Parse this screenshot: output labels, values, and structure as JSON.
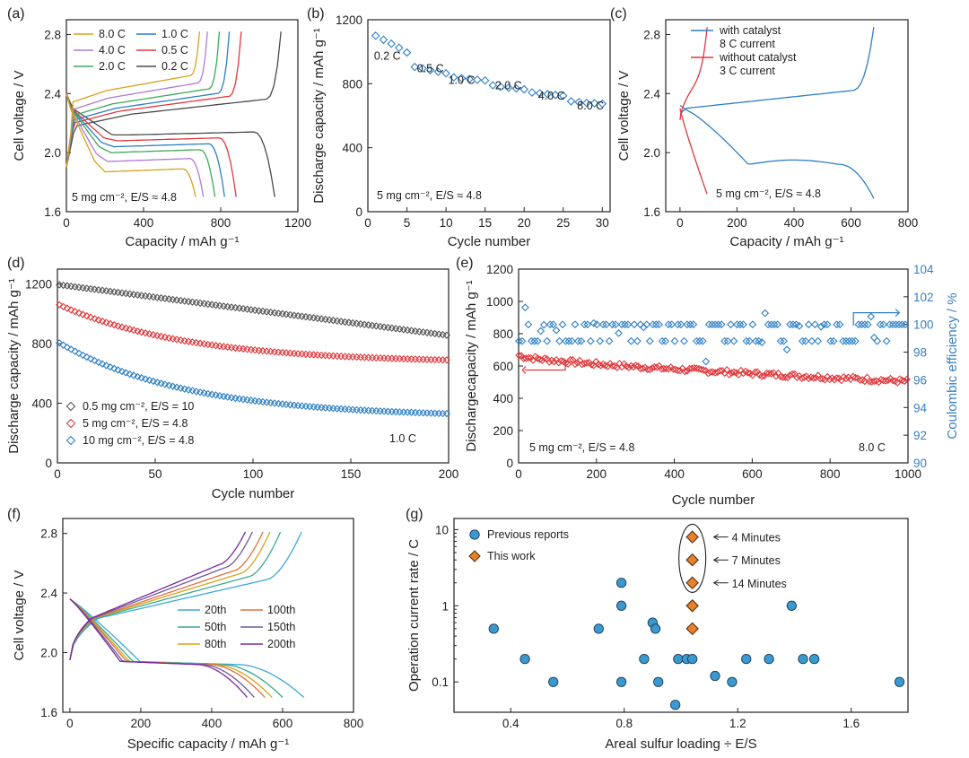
{
  "chart_data": [
    {
      "panel": "(a)",
      "type": "line",
      "xlabel": "Capacity / mAh g⁻¹",
      "ylabel": "Cell voltage / V",
      "xlim": [
        0,
        1200
      ],
      "ylim": [
        1.6,
        2.9
      ],
      "xticks": [
        "0",
        "400",
        "800",
        "1200"
      ],
      "yticks": [
        "1.6",
        "2.0",
        "2.4",
        "2.8"
      ],
      "annotation": "5 mg cm⁻², E/S ≈ 4.8",
      "series": [
        {
          "name": "8.0 C",
          "color": "#d8a21a",
          "capacity": 670
        },
        {
          "name": "4.0 C",
          "color": "#b07ad8",
          "capacity": 710
        },
        {
          "name": "2.0 C",
          "color": "#3aaa5a",
          "capacity": 770
        },
        {
          "name": "1.0 C",
          "color": "#2d7fc4",
          "capacity": 820
        },
        {
          "name": "0.5 C",
          "color": "#e0383c",
          "capacity": 880
        },
        {
          "name": "0.2 C",
          "color": "#4a4a4a",
          "capacity": 1080
        }
      ]
    },
    {
      "panel": "(b)",
      "type": "scatter",
      "xlabel": "Cycle number",
      "ylabel": "Discharge capacity / mAh g⁻¹",
      "xlim": [
        0,
        31
      ],
      "ylim": [
        0,
        1200
      ],
      "xticks": [
        "0",
        "5",
        "10",
        "15",
        "20",
        "25",
        "30"
      ],
      "yticks": [
        "0",
        "400",
        "800",
        "1200"
      ],
      "annotation": "5 mg cm⁻², E/S ≈ 4.8",
      "x": [
        1,
        2,
        3,
        4,
        5,
        6,
        7,
        8,
        9,
        10,
        11,
        12,
        13,
        14,
        15,
        16,
        17,
        18,
        19,
        20,
        21,
        22,
        23,
        24,
        25,
        26,
        27,
        28,
        29,
        30
      ],
      "y": [
        1100,
        1075,
        1050,
        1025,
        995,
        905,
        895,
        885,
        875,
        865,
        840,
        835,
        830,
        825,
        820,
        790,
        780,
        775,
        770,
        765,
        745,
        740,
        735,
        730,
        725,
        690,
        685,
        680,
        678,
        675
      ],
      "rate_labels": [
        "0.2 C",
        "0.5 C",
        "1.0 C",
        "2.0 C",
        "4.0 C",
        "8.0 C"
      ]
    },
    {
      "panel": "(c)",
      "type": "line",
      "xlabel": "Capacity / mAh g⁻¹",
      "ylabel": "Cell voltage / V",
      "xlim": [
        -50,
        800
      ],
      "ylim": [
        1.6,
        2.9
      ],
      "xticks": [
        "0",
        "200",
        "400",
        "600",
        "800"
      ],
      "yticks": [
        "1.6",
        "2.0",
        "2.4",
        "2.8"
      ],
      "annotation": "5 mg cm⁻², E/S ≈ 4.8",
      "series": [
        {
          "name": "with catalyst",
          "sub": "8 C current",
          "color": "#2d7fc4",
          "capacity": 680
        },
        {
          "name": "without catalyst",
          "sub": "3 C current",
          "color": "#e0383c",
          "capacity": 95
        }
      ]
    },
    {
      "panel": "(d)",
      "type": "scatter",
      "xlabel": "Cycle number",
      "ylabel": "Discharge capacity / mAh g⁻¹",
      "xlim": [
        0,
        200
      ],
      "ylim": [
        0,
        1300
      ],
      "xticks": [
        "0",
        "50",
        "100",
        "150",
        "200"
      ],
      "yticks": [
        "0",
        "400",
        "800",
        "1200"
      ],
      "annotation": "1.0 C",
      "series": [
        {
          "name": "0.5 mg cm⁻², E/S = 10",
          "color": "#555555",
          "start": 1195,
          "end": 855
        },
        {
          "name": "5 mg cm⁻², E/S = 4.8",
          "color": "#e0383c",
          "start": 1060,
          "end": 690
        },
        {
          "name": "10 mg cm⁻², E/S = 4.8",
          "color": "#2d7fc4",
          "start": 805,
          "end": 330
        }
      ]
    },
    {
      "panel": "(e)",
      "type": "scatter",
      "xlabel": "Cycle number",
      "ylabel": "Dischargecapacity / mAh g⁻¹",
      "ylabel_right": "Coulombic efficiency / %",
      "xlim": [
        0,
        1000
      ],
      "ylim": [
        0,
        1200
      ],
      "ylim_right": [
        90,
        104
      ],
      "xticks": [
        "0",
        "200",
        "400",
        "600",
        "800",
        "1000"
      ],
      "yticks": [
        "0",
        "200",
        "400",
        "600",
        "800",
        "1000",
        "1200"
      ],
      "yticks_right": [
        "90",
        "92",
        "94",
        "96",
        "98",
        "100",
        "102",
        "104"
      ],
      "annotation": "5 mg cm⁻², E/S = 4.8",
      "rate": "8.0 C",
      "capacity_start": 670,
      "capacity_end": 505,
      "efficiency_mean": 99.5
    },
    {
      "panel": "(f)",
      "type": "line",
      "xlabel": "Specific capacity / mAh g⁻¹",
      "ylabel": "Cell voltage / V",
      "xlim": [
        -20,
        800
      ],
      "ylim": [
        1.6,
        2.9
      ],
      "xticks": [
        "0",
        "200",
        "400",
        "600",
        "800"
      ],
      "yticks": [
        "1.6",
        "2.0",
        "2.4",
        "2.8"
      ],
      "series": [
        {
          "name": "20th",
          "color": "#3aa8d8",
          "capacity": 660
        },
        {
          "name": "50th",
          "color": "#3aaa8a",
          "capacity": 600
        },
        {
          "name": "80th",
          "color": "#d8a21a",
          "capacity": 570
        },
        {
          "name": "100th",
          "color": "#e0703c",
          "capacity": 550
        },
        {
          "name": "150th",
          "color": "#6a5a9a",
          "capacity": 520
        },
        {
          "name": "200th",
          "color": "#7a2aa0",
          "capacity": 500
        }
      ]
    },
    {
      "panel": "(g)",
      "type": "scatter",
      "xlabel": "Areal sulfur loading ÷ E/S",
      "ylabel": "Operation current rate / C",
      "xscale": "linear",
      "yscale": "log",
      "xlim": [
        0.2,
        1.8
      ],
      "ylim": [
        0.04,
        14
      ],
      "xticks": [
        "0.4",
        "0.8",
        "1.2",
        "1.6"
      ],
      "yticks": [
        "0.1",
        "1",
        "10"
      ],
      "series": [
        {
          "name": "Previous reports",
          "color": "#3a9ad0",
          "x": [
            0.34,
            0.45,
            0.55,
            0.71,
            0.79,
            0.79,
            0.79,
            0.87,
            0.9,
            0.91,
            0.92,
            0.98,
            0.99,
            1.02,
            1.04,
            1.12,
            1.18,
            1.23,
            1.31,
            1.39,
            1.43,
            1.47,
            1.77
          ],
          "y": [
            0.5,
            0.2,
            0.1,
            0.5,
            2,
            1,
            0.1,
            0.2,
            0.6,
            0.5,
            0.1,
            0.05,
            0.2,
            0.2,
            0.2,
            0.12,
            0.1,
            0.2,
            0.2,
            1,
            0.2,
            0.2,
            0.1
          ]
        },
        {
          "name": "This work",
          "color": "#e8822a",
          "x": [
            1.04,
            1.04,
            1.04,
            1.04,
            1.04
          ],
          "y": [
            8,
            4,
            2,
            1,
            0.5
          ]
        }
      ],
      "annotations": [
        "4 Minutes",
        "7 Minutes",
        "14 Minutes"
      ]
    }
  ]
}
